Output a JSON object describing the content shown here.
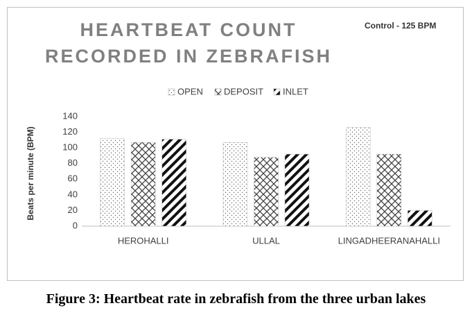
{
  "chart_data": {
    "type": "bar",
    "title": "HEARTBEAT COUNT RECORDED IN ZEBRAFISH",
    "annotation": "Control - 125 BPM",
    "y_label": "Beats per minute (BPM)",
    "categories": [
      "HEROHALLI",
      "ULLAL",
      "LINGADHEERANAHALLI"
    ],
    "series": [
      {
        "name": "OPEN",
        "color": "#666666",
        "pattern": "dots",
        "values": [
          112,
          107,
          126
        ]
      },
      {
        "name": "DEPOSIT",
        "color": "#404040",
        "pattern": "crosshatch",
        "values": [
          107,
          88,
          92
        ]
      },
      {
        "name": "INLET",
        "color": "#111111",
        "pattern": "diagonal",
        "values": [
          111,
          92,
          20
        ]
      }
    ],
    "ylim": [
      0,
      140
    ],
    "yticks": [
      0,
      20,
      40,
      60,
      80,
      100,
      120,
      140
    ],
    "grid": false,
    "legend": "top",
    "caption": "Figure 3: Heartbeat rate in zebrafish from the three urban lakes"
  }
}
